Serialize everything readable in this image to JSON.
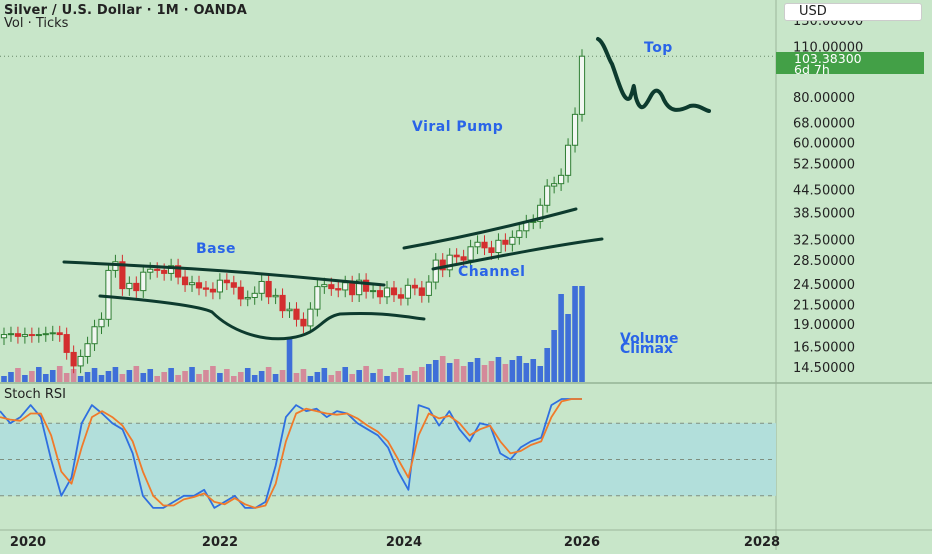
{
  "header": {
    "title": "Silver / U.S. Dollar · 1M · OANDA",
    "subtitle": "Vol · Ticks",
    "currency": "USD"
  },
  "price_tag": {
    "price": "103.38300",
    "countdown": "6d 7h"
  },
  "indicator_title": "Stoch RSI",
  "colors": {
    "background": "#c8e6c9",
    "up": "#26a69a",
    "up_candle": "#2e7d32",
    "down_candle": "#d32f2f",
    "vol_up": "#3f6fd8",
    "vol_down": "#d48a9a",
    "k_line": "#2f6fe0",
    "d_line": "#f07a2a",
    "band": "#b2dfdb",
    "annotation": "#2a64e8",
    "drawing": "#0d3b2e",
    "price_tag": "#43a047"
  },
  "annotations": [
    "Top",
    "Viral Pump",
    "Base",
    "Channel",
    "Volume Climax"
  ],
  "chart_data": [
    {
      "type": "candlestick",
      "title": "Silver / U.S. Dollar · 1M · OANDA",
      "scale": "log",
      "y_ticks": [
        "14.50000",
        "16.50000",
        "19.00000",
        "21.50000",
        "24.50000",
        "28.50000",
        "32.50000",
        "38.50000",
        "44.50000",
        "52.50000",
        "60.00000",
        "68.00000",
        "80.00000",
        "110.00000",
        "130.00000"
      ],
      "x_ticks": [
        "2020",
        "2022",
        "2024",
        "2026",
        "2028"
      ],
      "last_price": 103.383,
      "closes": [
        17.8,
        17.9,
        17.6,
        17.8,
        17.7,
        17.8,
        17.9,
        18.0,
        17.8,
        15.9,
        14.6,
        15.5,
        16.8,
        18.7,
        19.6,
        26.7,
        28.2,
        23.8,
        24.6,
        23.5,
        26.4,
        26.9,
        26.7,
        26.2,
        27.5,
        25.6,
        24.4,
        24.7,
        23.9,
        23.7,
        23.3,
        25.1,
        24.7,
        24.0,
        22.3,
        22.5,
        23.1,
        24.9,
        22.6,
        22.8,
        20.7,
        20.9,
        19.6,
        18.8,
        20.9,
        24.1,
        24.4,
        23.8,
        23.6,
        24.7,
        22.9,
        25.1,
        23.4,
        23.5,
        22.6,
        23.9,
        22.9,
        22.4,
        24.3,
        23.9,
        22.8,
        24.8,
        28.5,
        26.8,
        29.4,
        29.1,
        28.5,
        31.0,
        31.9,
        30.8,
        29.9,
        32.3,
        31.5,
        32.9,
        34.3,
        36.3,
        36.4,
        40.3,
        45.5,
        46.2,
        48.7,
        58.9,
        71.6,
        103.4
      ],
      "volume_bars": [
        {
          "count": 42,
          "direction": "mixed"
        },
        {
          "peak_label": "Volume Climax"
        }
      ],
      "annotations": [
        "Base",
        "Channel",
        "Viral Pump",
        "Top",
        "Volume Climax"
      ]
    },
    {
      "type": "line",
      "title": "Stoch RSI",
      "series": [
        {
          "color": "#2f6fe0",
          "values": [
            90,
            80,
            85,
            95,
            85,
            50,
            20,
            35,
            80,
            95,
            88,
            80,
            75,
            55,
            20,
            10,
            10,
            15,
            20,
            20,
            25,
            10,
            15,
            20,
            10,
            10,
            15,
            45,
            85,
            95,
            90,
            92,
            85,
            90,
            88,
            80,
            75,
            70,
            60,
            40,
            25,
            95,
            92,
            78,
            90,
            75,
            65,
            80,
            78,
            55,
            50,
            60,
            65,
            68,
            95,
            100,
            100,
            100
          ]
        },
        {
          "color": "#f07a2a",
          "values": [
            85,
            83,
            82,
            88,
            88,
            70,
            40,
            30,
            60,
            85,
            90,
            85,
            78,
            65,
            40,
            20,
            12,
            12,
            17,
            19,
            22,
            15,
            13,
            18,
            13,
            10,
            12,
            30,
            65,
            88,
            92,
            90,
            88,
            87,
            88,
            84,
            78,
            73,
            65,
            50,
            35,
            70,
            88,
            84,
            86,
            80,
            70,
            75,
            78,
            65,
            55,
            57,
            62,
            65,
            85,
            98,
            100,
            100
          ]
        }
      ],
      "band": [
        20,
        80
      ]
    }
  ]
}
